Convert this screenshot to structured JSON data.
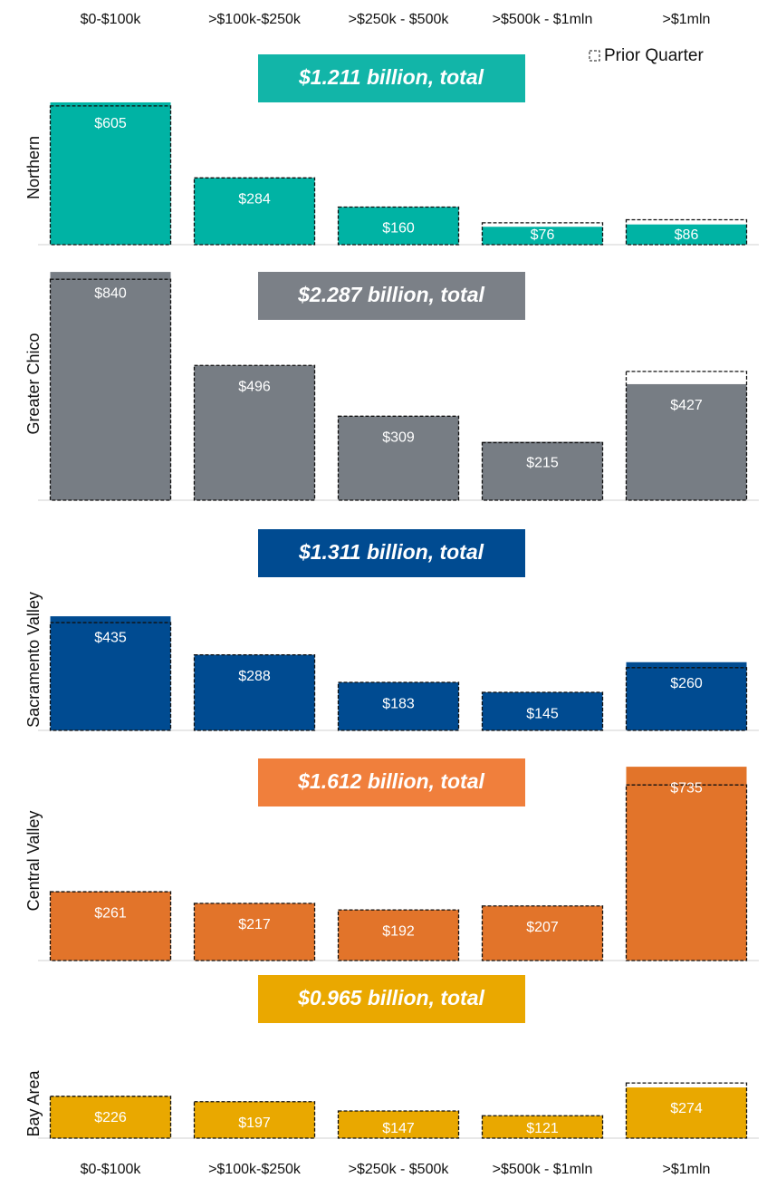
{
  "chart_data": [
    {
      "type": "bar",
      "title": "$1.211 billion, total",
      "ylabel": "Northern",
      "categories": [
        "$0-$100k",
        ">$100k-$250k",
        ">$250k - $500k",
        ">$500k - $1mln",
        ">$1mln"
      ],
      "legend": "Prior Quarter",
      "values": [
        605,
        284,
        160,
        76,
        86
      ],
      "value_labels": [
        "$605",
        "$284",
        "$160",
        "$76",
        "$86"
      ],
      "prior_values": [
        590,
        284,
        160,
        93,
        106
      ],
      "color": "#00b3a4",
      "title_color": "#12b5a8",
      "ylim": [
        0,
        655
      ]
    },
    {
      "type": "bar",
      "title": "$2.287 billion, total",
      "ylabel": "Greater Chico",
      "values": [
        840,
        496,
        309,
        215,
        427
      ],
      "value_labels": [
        "$840",
        "$496",
        "$309",
        "$215",
        "$427"
      ],
      "prior_values": [
        813,
        496,
        309,
        212,
        474
      ],
      "color": "#777d84",
      "title_color": "#7b8087",
      "ylim": [
        0,
        857
      ]
    },
    {
      "type": "bar",
      "title": "$1.311 billion, total",
      "ylabel": "Sacramento Valley",
      "values": [
        435,
        288,
        183,
        145,
        260
      ],
      "value_labels": [
        "$435",
        "$288",
        "$183",
        "$145",
        "$260"
      ],
      "prior_values": [
        411,
        288,
        183,
        145,
        239
      ],
      "color": "#004b91",
      "title_color": "#004b91",
      "ylim": [
        0,
        539
      ]
    },
    {
      "type": "bar",
      "title": "$1.612 billion, total",
      "ylabel": "Central Valley",
      "values": [
        261,
        217,
        192,
        207,
        735
      ],
      "value_labels": [
        "$261",
        "$217",
        "$192",
        "$207",
        "$735"
      ],
      "prior_values": [
        261,
        217,
        192,
        207,
        666
      ],
      "color": "#e2742a",
      "title_color": "#f07f3c",
      "ylim": [
        0,
        756
      ]
    },
    {
      "type": "bar",
      "title": "$0.965 billion, total",
      "ylabel": "Bay Area",
      "categories": [
        "$0-$100k",
        ">$100k-$250k",
        ">$250k - $500k",
        ">$500k - $1mln",
        ">$1mln"
      ],
      "values": [
        226,
        197,
        147,
        121,
        274
      ],
      "value_labels": [
        "$226",
        "$197",
        "$147",
        "$121",
        "$274"
      ],
      "prior_values": [
        226,
        197,
        147,
        121,
        298
      ],
      "color": "#e9a800",
      "title_color": "#eaa800",
      "ylim": [
        0,
        372
      ]
    }
  ]
}
